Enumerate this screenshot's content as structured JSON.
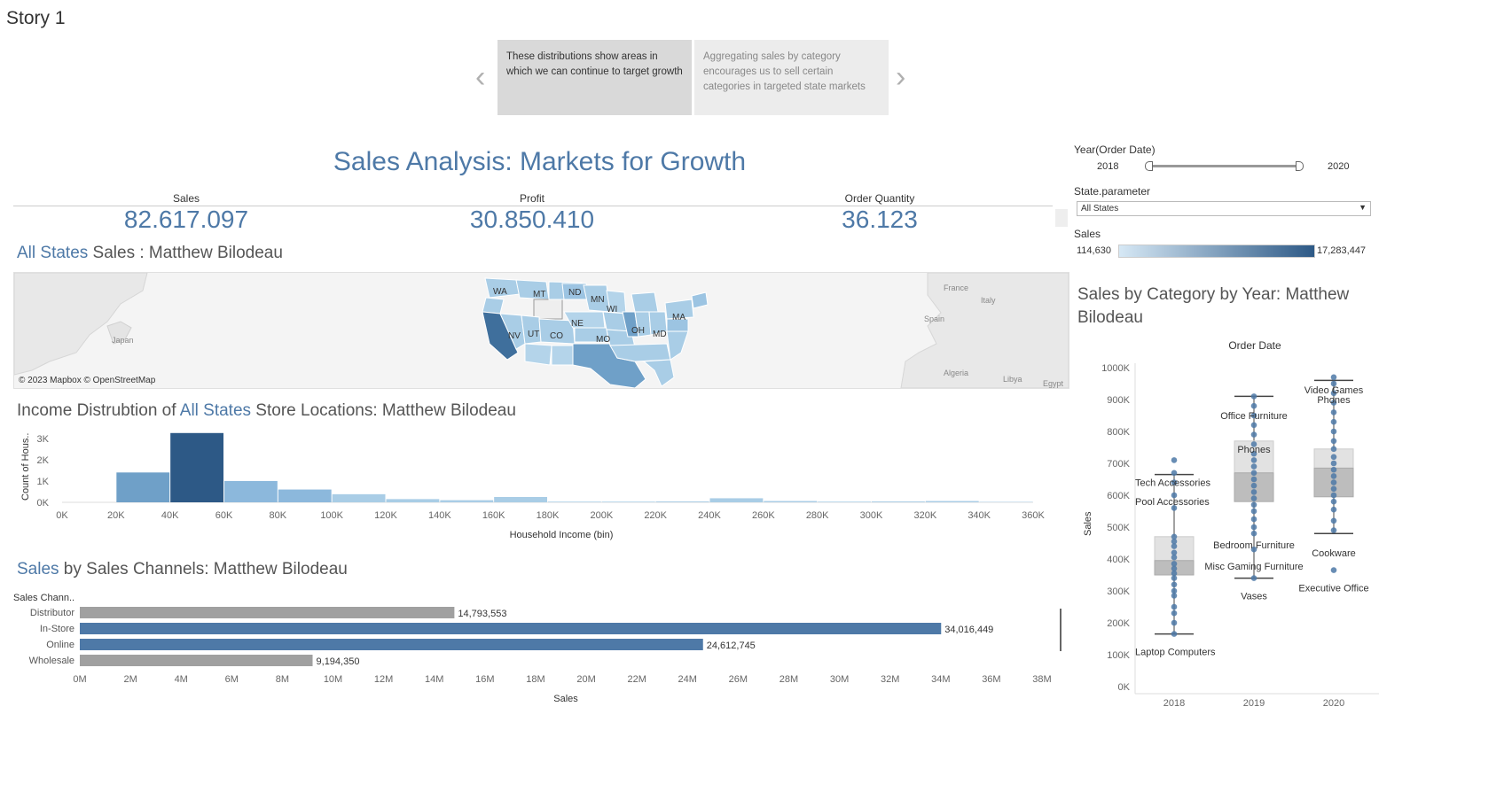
{
  "story": {
    "title": "Story 1",
    "points": [
      "These distributions show areas in which we can continue to target growth",
      "Aggregating sales by category encourages us to sell certain categories in targeted state markets"
    ]
  },
  "dashboard": {
    "title": "Sales Analysis: Markets for Growth",
    "kpis": [
      {
        "label": "Sales",
        "value": "82.617.097"
      },
      {
        "label": "Profit",
        "value": "30.850.410"
      },
      {
        "label": "Order Quantity",
        "value": "36.123"
      }
    ]
  },
  "map_section": {
    "title_highlight": "All States",
    "title_rest": " Sales  : Matthew Bilodeau",
    "attribution": "© 2023 Mapbox © OpenStreetMap",
    "place_labels": [
      "Japan",
      "France",
      "Italy",
      "Spain",
      "Algeria",
      "Libya",
      "Egypt"
    ],
    "state_labels": [
      "WA",
      "MT",
      "ND",
      "MN",
      "WI",
      "NV",
      "UT",
      "CO",
      "NE",
      "MO",
      "OH",
      "MD",
      "MA"
    ]
  },
  "filters": {
    "year_label": "Year(Order Date)",
    "year_min": "2018",
    "year_max": "2020",
    "state_label": "State.parameter",
    "state_value": "All States",
    "sales_legend_label": "Sales",
    "sales_legend_min": "114,630",
    "sales_legend_max": "17,283,447"
  },
  "colors": {
    "accent": "#4e79a7",
    "dark_blue": "#2d5986",
    "mid_blue": "#6fa0c8",
    "light_blue": "#a9cde6",
    "grey_bar": "#a0a0a0"
  },
  "income_chart": {
    "title_prefix": "Income Distrubtion of ",
    "title_highlight": "All States",
    "title_rest": "  Store Locations: Matthew Bilodeau",
    "chart_data": {
      "type": "bar",
      "xlabel": "Household Income (bin)",
      "ylabel": "Count of Hous..",
      "x_ticks": [
        "0K",
        "20K",
        "40K",
        "60K",
        "80K",
        "100K",
        "120K",
        "140K",
        "160K",
        "180K",
        "200K",
        "220K",
        "240K",
        "260K",
        "280K",
        "300K",
        "320K",
        "340K",
        "360K"
      ],
      "y_ticks": [
        "0K",
        "1K",
        "2K",
        "3K"
      ],
      "ylim": [
        0,
        3200
      ],
      "bins": [
        0,
        20,
        40,
        60,
        80,
        100,
        120,
        140,
        160,
        180,
        200,
        220,
        240,
        260,
        280,
        300,
        320,
        340
      ],
      "values": [
        0,
        1400,
        3250,
        1000,
        600,
        380,
        150,
        100,
        250,
        30,
        30,
        40,
        190,
        60,
        30,
        40,
        60,
        20
      ]
    }
  },
  "channel_chart": {
    "title_highlight": "Sales",
    "title_rest": " by Sales Channels: Matthew Bilodeau",
    "chart_data": {
      "type": "bar",
      "orientation": "horizontal",
      "dimension_label": "Sales Chann..",
      "xlabel": "Sales",
      "categories": [
        "Distributor",
        "In-Store",
        "Online",
        "Wholesale"
      ],
      "values": [
        14793553,
        34016449,
        24612745,
        9194350
      ],
      "value_labels": [
        "14,793,553",
        "34,016,449",
        "24,612,745",
        "9,194,350"
      ],
      "highlighted": [
        false,
        true,
        true,
        false
      ],
      "x_ticks": [
        "0M",
        "2M",
        "4M",
        "6M",
        "8M",
        "10M",
        "12M",
        "14M",
        "16M",
        "18M",
        "20M",
        "22M",
        "24M",
        "26M",
        "28M",
        "30M",
        "32M",
        "34M",
        "36M",
        "38M"
      ],
      "xlim": [
        0,
        38000000
      ]
    }
  },
  "category_chart": {
    "title": "Sales by Category by Year: Matthew Bilodeau",
    "chart_data": {
      "type": "box-plot",
      "column_header": "Order Date",
      "ylabel": "Sales",
      "categories": [
        "2018",
        "2019",
        "2020"
      ],
      "y_ticks": [
        "0K",
        "100K",
        "200K",
        "300K",
        "400K",
        "500K",
        "600K",
        "700K",
        "800K",
        "900K",
        "1000K"
      ],
      "ylim": [
        0,
        1000000
      ],
      "boxes": [
        {
          "year": "2018",
          "min": 165000,
          "q1": 350000,
          "median": 395000,
          "q3": 470000,
          "max": 665000
        },
        {
          "year": "2019",
          "min": 340000,
          "q1": 580000,
          "median": 670000,
          "q3": 770000,
          "max": 910000
        },
        {
          "year": "2020",
          "min": 480000,
          "q1": 595000,
          "median": 685000,
          "q3": 745000,
          "max": 960000
        }
      ],
      "points": [
        {
          "year": "2018",
          "values": [
            710000,
            670000,
            640000,
            600000,
            560000,
            470000,
            455000,
            440000,
            420000,
            405000,
            385000,
            370000,
            355000,
            340000,
            320000,
            300000,
            285000,
            250000,
            230000,
            200000,
            165000
          ]
        },
        {
          "year": "2019",
          "values": [
            910000,
            880000,
            850000,
            820000,
            790000,
            760000,
            730000,
            710000,
            690000,
            670000,
            650000,
            630000,
            610000,
            590000,
            570000,
            550000,
            525000,
            500000,
            480000,
            430000,
            340000
          ]
        },
        {
          "year": "2020",
          "values": [
            970000,
            950000,
            920000,
            890000,
            860000,
            830000,
            800000,
            770000,
            745000,
            720000,
            700000,
            680000,
            660000,
            640000,
            620000,
            600000,
            580000,
            555000,
            520000,
            490000,
            365000
          ]
        }
      ],
      "annotations": [
        {
          "text": "Tech Accessories",
          "year": "2018",
          "value": 640000
        },
        {
          "text": "Pool Accessories",
          "year": "2018",
          "value": 580000
        },
        {
          "text": "Laptop Computers",
          "year": "2018",
          "value": 110000
        },
        {
          "text": "Office Furniture",
          "year": "2019",
          "value": 850000
        },
        {
          "text": "Phones",
          "year": "2019",
          "value": 745000
        },
        {
          "text": "Bedroom Furniture",
          "year": "2019",
          "value": 445000
        },
        {
          "text": "Misc Gaming Furniture",
          "year": "2019",
          "value": 378000
        },
        {
          "text": "Vases",
          "year": "2019",
          "value": 285000
        },
        {
          "text": "Video Games",
          "year": "2020",
          "value": 930000
        },
        {
          "text": "Phones",
          "year": "2020",
          "value": 900000
        },
        {
          "text": "Cookware",
          "year": "2020",
          "value": 420000
        },
        {
          "text": "Executive Office",
          "year": "2020",
          "value": 310000
        }
      ]
    }
  }
}
